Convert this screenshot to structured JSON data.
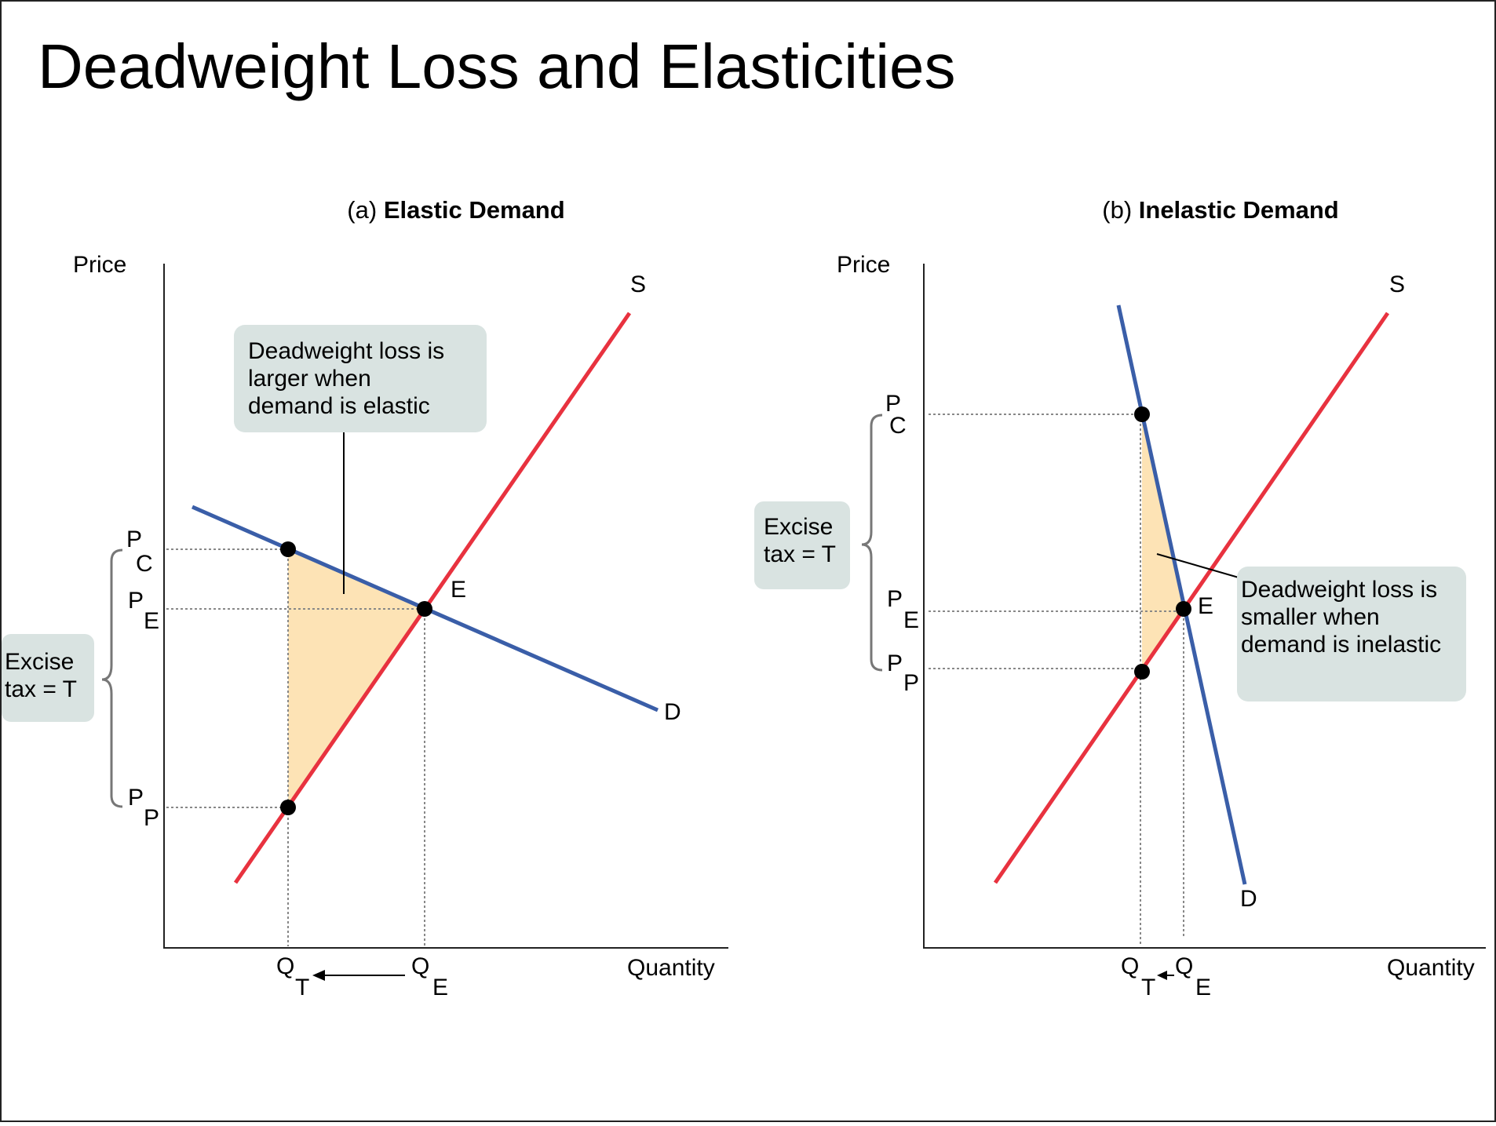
{
  "slide": {
    "title": "Deadweight Loss and Elasticities"
  },
  "colors": {
    "supply": "#e8323f",
    "demand": "#3a5ea8",
    "deadweight_fill": "#fde3b5",
    "callout_fill": "#d9e3e1",
    "guide": "#888888",
    "brace": "#777777"
  },
  "panel_a": {
    "prefix": "(a)",
    "title": "Elastic Demand",
    "y_axis_label": "Price",
    "x_axis_label": "Quantity",
    "supply_label": "S",
    "demand_label": "D",
    "equilibrium_label": "E",
    "pc": {
      "main": "P",
      "sub": "C"
    },
    "pe": {
      "main": "P",
      "sub": "E"
    },
    "pp": {
      "main": "P",
      "sub": "P"
    },
    "qt": {
      "main": "Q",
      "sub": "T"
    },
    "qe": {
      "main": "Q",
      "sub": "E"
    },
    "callout_lines": [
      "Deadweight loss is",
      "larger when",
      "demand is elastic"
    ],
    "tax_lines": [
      "Excise",
      "tax = T"
    ]
  },
  "panel_b": {
    "prefix": "(b)",
    "title": "Inelastic Demand",
    "y_axis_label": "Price",
    "x_axis_label": "Quantity",
    "supply_label": "S",
    "demand_label": "D",
    "equilibrium_label": "E",
    "pc": {
      "main": "P",
      "sub": "C"
    },
    "pe": {
      "main": "P",
      "sub": "E"
    },
    "pp": {
      "main": "P",
      "sub": "P"
    },
    "qt": {
      "main": "Q",
      "sub": "T"
    },
    "qe": {
      "main": "Q",
      "sub": "E"
    },
    "callout_lines": [
      "Deadweight loss is",
      "smaller when",
      "demand is inelastic"
    ],
    "tax_lines": [
      "Excise",
      "tax = T"
    ]
  }
}
